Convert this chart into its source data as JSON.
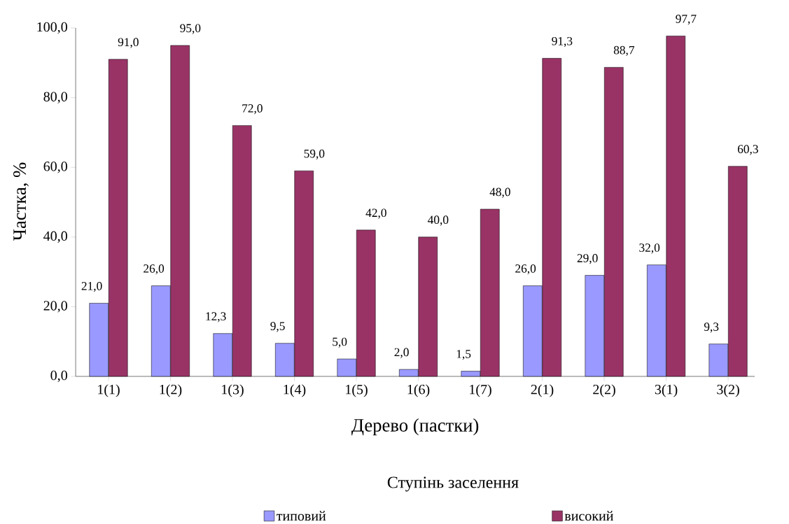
{
  "chart_data": {
    "type": "bar",
    "categories": [
      "1(1)",
      "1(2)",
      "1(3)",
      "1(4)",
      "1(5)",
      "1(6)",
      "1(7)",
      "2(1)",
      "2(2)",
      "3(1)",
      "3(2)"
    ],
    "series": [
      {
        "name": "типовий",
        "color": "#9999ff",
        "values": [
          21.0,
          26.0,
          12.3,
          9.5,
          5.0,
          2.0,
          1.5,
          26.0,
          29.0,
          32.0,
          9.3
        ],
        "value_labels": [
          "21,0",
          "26,0",
          "12,3",
          "9,5",
          "5,0",
          "2,0",
          "1,5",
          "26,0",
          "29,0",
          "32,0",
          "9,3"
        ]
      },
      {
        "name": "високий",
        "color": "#993366",
        "values": [
          91.0,
          95.0,
          72.0,
          59.0,
          42.0,
          40.0,
          48.0,
          91.3,
          88.7,
          97.7,
          60.3
        ],
        "value_labels": [
          "91,0",
          "95,0",
          "72,0",
          "59,0",
          "42,0",
          "40,0",
          "48,0",
          "91,3",
          "88,7",
          "97,7",
          "60,3"
        ]
      }
    ],
    "xlabel": "Дерево (пастки)",
    "ylabel": "Частка, %",
    "legend_title": "Ступінь заселення",
    "legend": "bottom",
    "ylim": [
      0,
      100
    ],
    "yticks": [
      {
        "value": 0,
        "label": "0,0"
      },
      {
        "value": 20,
        "label": "20,0"
      },
      {
        "value": 40,
        "label": "40,0"
      },
      {
        "value": 60,
        "label": "60,0"
      },
      {
        "value": 80,
        "label": "80,0"
      },
      {
        "value": 100,
        "label": "100,0"
      }
    ]
  }
}
